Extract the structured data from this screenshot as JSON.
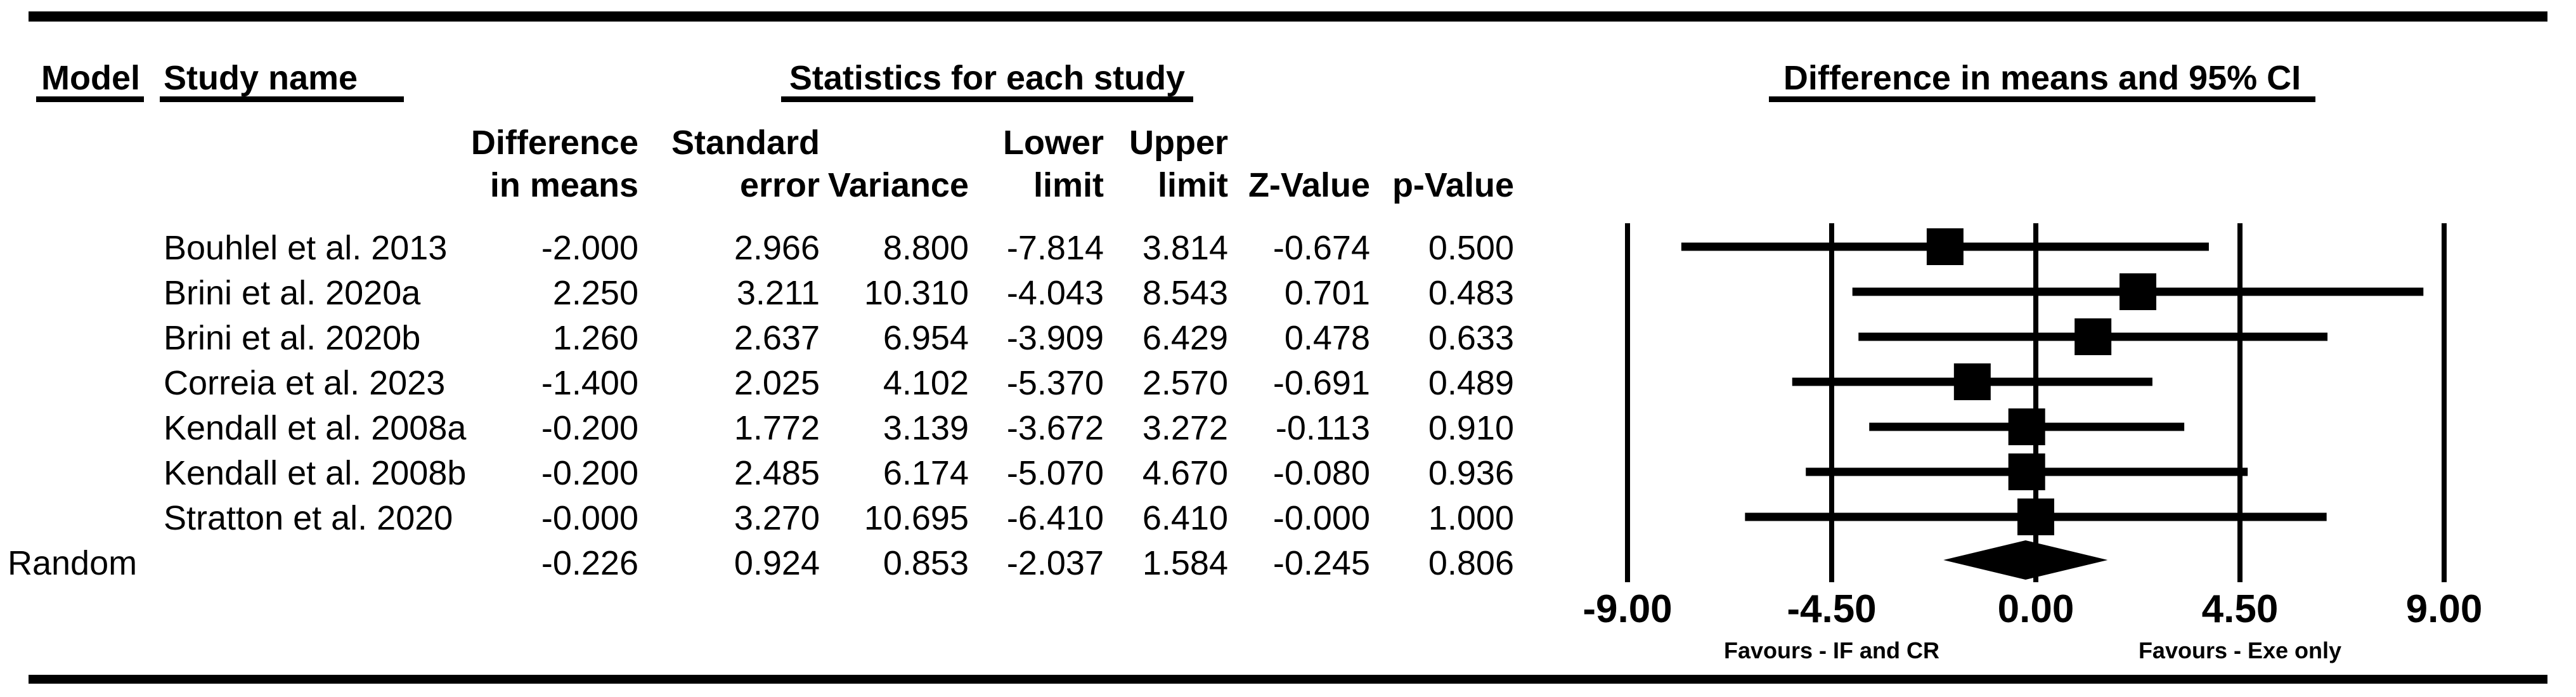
{
  "header": {
    "model_label": "Model",
    "study_name_label": "Study name",
    "stats_section_label": "Statistics for each study",
    "plot_section_label": "Difference in means and 95% CI"
  },
  "columns": [
    {
      "id": "diff",
      "line1": "Difference",
      "line2": "in means"
    },
    {
      "id": "se",
      "line1": "Standard",
      "line2": "error"
    },
    {
      "id": "variance",
      "line1": "",
      "line2": "Variance"
    },
    {
      "id": "lower",
      "line1": "Lower",
      "line2": "limit"
    },
    {
      "id": "upper",
      "line1": "Upper",
      "line2": "limit"
    },
    {
      "id": "z",
      "line1": "",
      "line2": "Z-Value"
    },
    {
      "id": "p",
      "line1": "",
      "line2": "p-Value"
    }
  ],
  "rows": [
    {
      "model": "",
      "study": "Bouhlel et al. 2013",
      "values": [
        "-2.000",
        "2.966",
        "8.800",
        "-7.814",
        "3.814",
        "-0.674",
        "0.500"
      ]
    },
    {
      "model": "",
      "study": "Brini et al. 2020a",
      "values": [
        "2.250",
        "3.211",
        "10.310",
        "-4.043",
        "8.543",
        "0.701",
        "0.483"
      ]
    },
    {
      "model": "",
      "study": "Brini et al. 2020b",
      "values": [
        "1.260",
        "2.637",
        "6.954",
        "-3.909",
        "6.429",
        "0.478",
        "0.633"
      ]
    },
    {
      "model": "",
      "study": "Correia et al. 2023",
      "values": [
        "-1.400",
        "2.025",
        "4.102",
        "-5.370",
        "2.570",
        "-0.691",
        "0.489"
      ]
    },
    {
      "model": "",
      "study": "Kendall et al. 2008a",
      "values": [
        "-0.200",
        "1.772",
        "3.139",
        "-3.672",
        "3.272",
        "-0.113",
        "0.910"
      ]
    },
    {
      "model": "",
      "study": "Kendall et al. 2008b",
      "values": [
        "-0.200",
        "2.485",
        "6.174",
        "-5.070",
        "4.670",
        "-0.080",
        "0.936"
      ]
    },
    {
      "model": "",
      "study": "Stratton et al. 2020",
      "values": [
        "-0.000",
        "3.270",
        "10.695",
        "-6.410",
        "6.410",
        "-0.000",
        "1.000"
      ]
    },
    {
      "model": "Random",
      "study": "",
      "values": [
        "-0.226",
        "0.924",
        "0.853",
        "-2.037",
        "1.584",
        "-0.245",
        "0.806"
      ]
    }
  ],
  "chart_data": {
    "type": "forest",
    "title": "Difference in means and 95% CI",
    "xlabel": "Difference in means",
    "xlim": [
      -9,
      9
    ],
    "x_ticks": [
      -9,
      -4.5,
      0,
      4.5,
      9
    ],
    "x_tick_labels": [
      "-9.00",
      "-4.50",
      "0.00",
      "4.50",
      "9.00"
    ],
    "grid": "vertical-lines-at-ticks",
    "studies": [
      {
        "name": "Bouhlel et al. 2013",
        "mean": -2.0,
        "lower": -7.814,
        "upper": 3.814
      },
      {
        "name": "Brini et al. 2020a",
        "mean": 2.25,
        "lower": -4.043,
        "upper": 8.543
      },
      {
        "name": "Brini et al. 2020b",
        "mean": 1.26,
        "lower": -3.909,
        "upper": 6.429
      },
      {
        "name": "Correia et al. 2023",
        "mean": -1.4,
        "lower": -5.37,
        "upper": 2.57
      },
      {
        "name": "Kendall et al. 2008a",
        "mean": -0.2,
        "lower": -3.672,
        "upper": 3.272
      },
      {
        "name": "Kendall et al. 2008b",
        "mean": -0.2,
        "lower": -5.07,
        "upper": 4.67
      },
      {
        "name": "Stratton et al. 2020",
        "mean": -0.0,
        "lower": -6.41,
        "upper": 6.41
      }
    ],
    "summary": {
      "name": "Random",
      "mean": -0.226,
      "lower": -2.037,
      "upper": 1.584,
      "marker": "diamond"
    },
    "footer": {
      "left_label": "Favours - IF and CR",
      "right_label": "Favours - Exe only"
    },
    "colors": {
      "ink": "#000000",
      "background": "#ffffff"
    }
  }
}
